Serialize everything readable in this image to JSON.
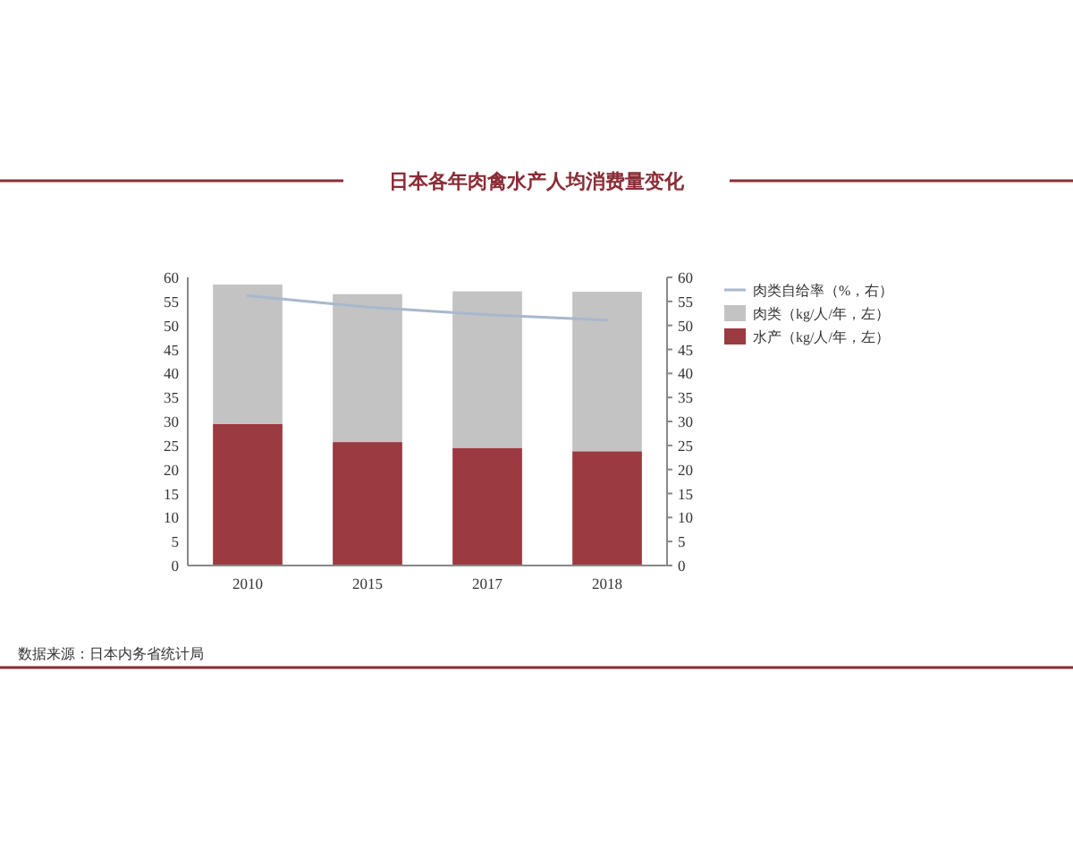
{
  "chart_data": {
    "type": "bar",
    "title": "日本各年肉禽水产人均消费量变化",
    "categories": [
      "2010",
      "2015",
      "2017",
      "2018"
    ],
    "stacked": true,
    "series": [
      {
        "name": "水产（kg/人/年，左）",
        "color": "#9b3a40",
        "values": [
          29.5,
          25.7,
          24.5,
          23.8
        ]
      },
      {
        "name": "肉类（kg/人/年，左）",
        "color": "#c3c3c3",
        "values": [
          29.0,
          30.8,
          32.6,
          33.2
        ]
      },
      {
        "type": "line",
        "axis": "y2",
        "name": "肉类自给率（%，右）",
        "color": "#a9b8cc",
        "values": [
          56.2,
          53.8,
          52.2,
          51.1
        ]
      }
    ],
    "ylim": [
      0,
      60
    ],
    "yticks": [
      0,
      5,
      10,
      15,
      20,
      25,
      30,
      35,
      40,
      45,
      50,
      55,
      60
    ],
    "y2lim": [
      0,
      60
    ],
    "y2ticks": [
      0,
      5,
      10,
      15,
      20,
      25,
      30,
      35,
      40,
      45,
      50,
      55,
      60
    ],
    "legend": "right",
    "grid": false,
    "annotations": [
      "数据来源：日本内务省统计局"
    ]
  }
}
